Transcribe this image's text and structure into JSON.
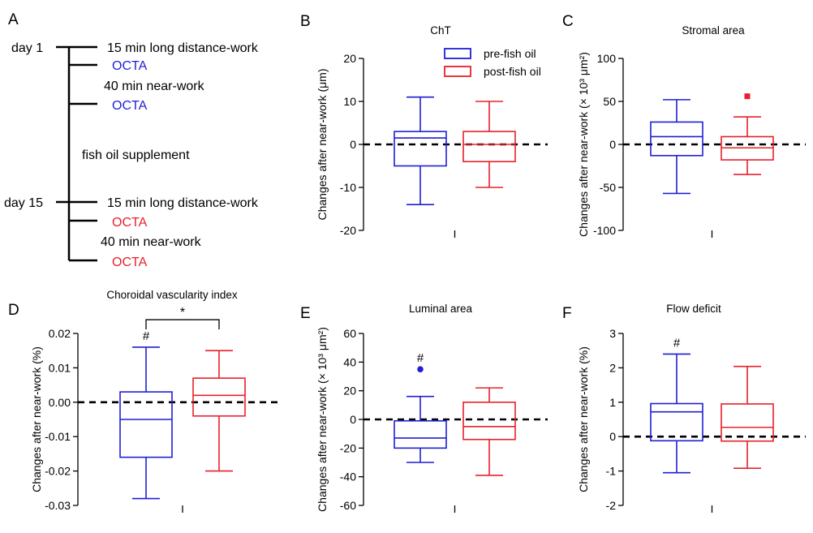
{
  "colors": {
    "pre": "#1f1fd6",
    "post": "#e8202a",
    "axis": "#000000"
  },
  "legend": {
    "pre": "pre-fish oil",
    "post": "post-fish oil"
  },
  "timeline": {
    "panel": "A",
    "days": [
      {
        "label": "day 1",
        "events": [
          {
            "text": "15 min long distance-work",
            "kind": "task"
          },
          {
            "text": "OCTA",
            "kind": "pre"
          },
          {
            "text": "40 min near-work",
            "kind": "note"
          },
          {
            "text": "OCTA",
            "kind": "pre"
          }
        ]
      },
      {
        "label": "day 15",
        "events": [
          {
            "text": "15 min long distance-work",
            "kind": "task"
          },
          {
            "text": "OCTA",
            "kind": "post"
          },
          {
            "text": "40 min near-work",
            "kind": "note"
          },
          {
            "text": "OCTA",
            "kind": "post"
          }
        ]
      }
    ],
    "middle_note": "fish oil supplement"
  },
  "chart_data": [
    {
      "id": "B",
      "type": "box",
      "title": "ChT",
      "ylabel": "Changes after near-work (μm)",
      "ylim": [
        -20,
        20
      ],
      "yticks": [
        -20,
        -10,
        0,
        10,
        20
      ],
      "series": [
        {
          "name": "pre-fish oil",
          "min": -14,
          "q1": -5,
          "median": 1.5,
          "q3": 3,
          "max": 11,
          "outliers": []
        },
        {
          "name": "post-fish oil",
          "min": -10,
          "q1": -4,
          "median": 0,
          "q3": 3,
          "max": 10,
          "outliers": []
        }
      ],
      "annotations": []
    },
    {
      "id": "C",
      "type": "box",
      "title": "Stromal area",
      "ylabel": "Changes after near-work (× 10³ μm²)",
      "ylim": [
        -100,
        100
      ],
      "yticks": [
        -100,
        -50,
        0,
        50,
        100
      ],
      "series": [
        {
          "name": "pre-fish oil",
          "min": -57,
          "q1": -13,
          "median": 9,
          "q3": 26,
          "max": 52,
          "outliers": []
        },
        {
          "name": "post-fish oil",
          "min": -35,
          "q1": -18,
          "median": -4,
          "q3": 9,
          "max": 32,
          "outliers": [
            56
          ]
        }
      ],
      "annotations": []
    },
    {
      "id": "D",
      "type": "box",
      "title": "Choroidal vascularity index",
      "ylabel": "Changes after near-work (%)",
      "ylim": [
        -0.03,
        0.02
      ],
      "yticks": [
        -0.03,
        -0.02,
        -0.01,
        0.0,
        0.01,
        0.02
      ],
      "tick_decimals": 2,
      "series": [
        {
          "name": "pre-fish oil",
          "min": -0.028,
          "q1": -0.016,
          "median": -0.005,
          "q3": 0.003,
          "max": 0.016,
          "outliers": []
        },
        {
          "name": "post-fish oil",
          "min": -0.02,
          "q1": -0.004,
          "median": 0.002,
          "q3": 0.007,
          "max": 0.015,
          "outliers": []
        }
      ],
      "annotations": [
        {
          "text": "#",
          "series": 0
        }
      ],
      "bracket": {
        "text": "*",
        "y": 0.024
      }
    },
    {
      "id": "E",
      "type": "box",
      "title": "Luminal area",
      "ylabel": "Changes after near-work (× 10³ μm²)",
      "ylim": [
        -60,
        60
      ],
      "yticks": [
        -60,
        -40,
        -20,
        0,
        20,
        40,
        60
      ],
      "series": [
        {
          "name": "pre-fish oil",
          "min": -30,
          "q1": -20,
          "median": -13,
          "q3": -1,
          "max": 16,
          "outliers": [
            35
          ]
        },
        {
          "name": "post-fish oil",
          "min": -39,
          "q1": -14,
          "median": -5,
          "q3": 12,
          "max": 22,
          "outliers": []
        }
      ],
      "annotations": [
        {
          "text": "#",
          "series": 0
        }
      ]
    },
    {
      "id": "F",
      "type": "box",
      "title": "Flow deficit",
      "ylabel": "Changes after near-work (%)",
      "ylim": [
        -2,
        3
      ],
      "yticks": [
        -2,
        -1,
        0,
        1,
        2,
        3
      ],
      "series": [
        {
          "name": "pre-fish oil",
          "min": -1.05,
          "q1": -0.12,
          "median": 0.72,
          "q3": 0.96,
          "max": 2.4,
          "outliers": []
        },
        {
          "name": "post-fish oil",
          "min": -0.92,
          "q1": -0.13,
          "median": 0.27,
          "q3": 0.95,
          "max": 2.04,
          "outliers": []
        }
      ],
      "annotations": [
        {
          "text": "#",
          "series": 0
        }
      ]
    }
  ]
}
